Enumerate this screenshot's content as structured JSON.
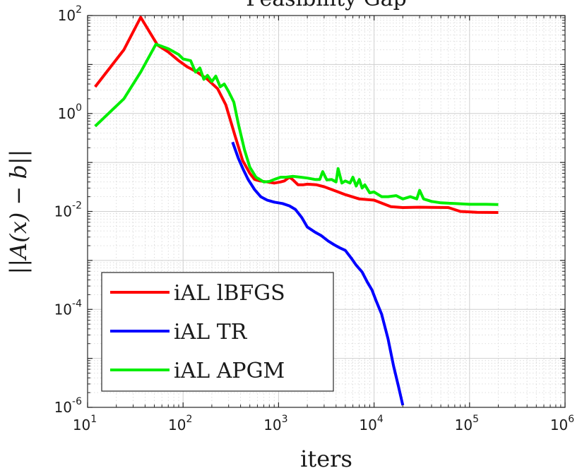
{
  "chart_data": {
    "type": "line",
    "title": "Feasibility Gap",
    "xlabel": "iters",
    "ylabel": "||A(x) − b||",
    "x_scale": "log",
    "y_scale": "log",
    "xlim": [
      10,
      1000000
    ],
    "ylim": [
      1e-06,
      100
    ],
    "grid": true,
    "minor_grid": true,
    "legend_position": "bottom-left",
    "x_ticks": [
      {
        "value": 10,
        "base": "10",
        "exp": "1"
      },
      {
        "value": 100,
        "base": "10",
        "exp": "2"
      },
      {
        "value": 1000,
        "base": "10",
        "exp": "3"
      },
      {
        "value": 10000,
        "base": "10",
        "exp": "4"
      },
      {
        "value": 100000,
        "base": "10",
        "exp": "5"
      },
      {
        "value": 1000000,
        "base": "10",
        "exp": "6"
      }
    ],
    "y_ticks": [
      {
        "value": 1e-06,
        "base": "10",
        "exp": "-6"
      },
      {
        "value": 0.0001,
        "base": "10",
        "exp": "-4"
      },
      {
        "value": 0.01,
        "base": "10",
        "exp": "-2"
      },
      {
        "value": 1,
        "base": "10",
        "exp": "0"
      },
      {
        "value": 100,
        "base": "10",
        "exp": "2"
      }
    ],
    "series": [
      {
        "name": "iAL lBFGS",
        "color": "#ff0000",
        "x": [
          12,
          24,
          36,
          54,
          70,
          90,
          110,
          140,
          180,
          230,
          280,
          350,
          420,
          500,
          560,
          640,
          760,
          900,
          1050,
          1150,
          1300,
          1400,
          1600,
          1800,
          2000,
          2500,
          3000,
          4000,
          5000,
          7000,
          10000,
          15000,
          20000,
          30000,
          40000,
          60000,
          80000,
          120000,
          200000
        ],
        "y": [
          3.5,
          20,
          92,
          25,
          18,
          12,
          9,
          7,
          5,
          3.2,
          1.5,
          0.35,
          0.11,
          0.06,
          0.045,
          0.042,
          0.04,
          0.038,
          0.04,
          0.042,
          0.05,
          0.045,
          0.035,
          0.035,
          0.036,
          0.035,
          0.032,
          0.026,
          0.022,
          0.018,
          0.017,
          0.0125,
          0.012,
          0.0122,
          0.0121,
          0.012,
          0.01,
          0.0096,
          0.0095
        ]
      },
      {
        "name": "iAL TR",
        "color": "#0000ff",
        "x": [
          330,
          380,
          430,
          480,
          560,
          650,
          760,
          900,
          1100,
          1300,
          1500,
          1750,
          2000,
          2400,
          2800,
          3300,
          3800,
          4400,
          5000,
          5800,
          6500,
          7500,
          8500,
          9500,
          10500,
          12000,
          14000,
          16000,
          18000,
          20000
        ],
        "y": [
          0.26,
          0.12,
          0.07,
          0.045,
          0.028,
          0.02,
          0.017,
          0.0155,
          0.0145,
          0.013,
          0.011,
          0.0075,
          0.0048,
          0.0038,
          0.0032,
          0.0025,
          0.0021,
          0.0018,
          0.0016,
          0.0011,
          0.0008,
          0.00058,
          0.00036,
          0.00025,
          0.00015,
          8e-05,
          2.5e-05,
          7e-06,
          2.7e-06,
          1.1e-06
        ]
      },
      {
        "name": "iAL APGM",
        "color": "#00ee00",
        "x": [
          12,
          24,
          36,
          52,
          70,
          90,
          100,
          120,
          135,
          150,
          165,
          180,
          200,
          220,
          245,
          270,
          300,
          340,
          380,
          440,
          500,
          580,
          700,
          800,
          900,
          1050,
          1200,
          1400,
          1700,
          2000,
          2400,
          2700,
          2900,
          3200,
          3600,
          4000,
          4200,
          4600,
          5000,
          5600,
          6000,
          6500,
          7000,
          7500,
          8000,
          9000,
          10000,
          12000,
          14000,
          17000,
          20000,
          24000,
          28000,
          30000,
          33000,
          40000,
          50000,
          70000,
          100000,
          150000,
          200000
        ],
        "y": [
          0.55,
          2,
          7,
          26,
          21,
          16,
          13,
          12,
          7,
          8.5,
          5,
          6,
          4.5,
          5.8,
          3.5,
          4,
          2.8,
          1.7,
          0.6,
          0.18,
          0.08,
          0.05,
          0.04,
          0.041,
          0.045,
          0.05,
          0.05,
          0.052,
          0.05,
          0.048,
          0.045,
          0.045,
          0.065,
          0.044,
          0.045,
          0.04,
          0.075,
          0.038,
          0.042,
          0.038,
          0.05,
          0.033,
          0.045,
          0.03,
          0.035,
          0.024,
          0.025,
          0.02,
          0.02,
          0.021,
          0.018,
          0.02,
          0.018,
          0.027,
          0.018,
          0.016,
          0.015,
          0.0145,
          0.014,
          0.014,
          0.0138
        ]
      }
    ]
  }
}
